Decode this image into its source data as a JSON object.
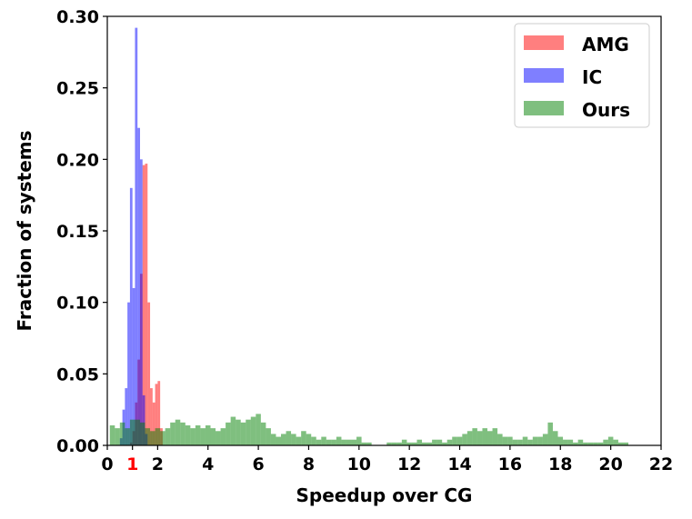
{
  "chart_data": {
    "type": "histogram",
    "xlabel": "Speedup over CG",
    "ylabel": "Fraction of systems",
    "xlim": [
      0,
      22
    ],
    "ylim": [
      0,
      0.3
    ],
    "xticks": [
      0,
      1,
      2,
      4,
      6,
      8,
      10,
      12,
      14,
      16,
      18,
      20,
      22
    ],
    "xtick_labels": [
      "0",
      "1",
      "2",
      "4",
      "6",
      "8",
      "10",
      "12",
      "14",
      "16",
      "18",
      "20",
      "22"
    ],
    "highlighted_xtick": {
      "label": "1",
      "color": "#ff0000"
    },
    "yticks": [
      0.0,
      0.05,
      0.1,
      0.15,
      0.2,
      0.25,
      0.3
    ],
    "ytick_labels": [
      "0.00",
      "0.05",
      "0.10",
      "0.15",
      "0.20",
      "0.25",
      "0.30"
    ],
    "grid": false,
    "legend_position": "top-right",
    "series": [
      {
        "name": "AMG",
        "color": "#ff0000",
        "opacity": 0.5,
        "bin_edges": [
          0.9,
          1.0,
          1.1,
          1.2,
          1.3,
          1.4,
          1.5,
          1.6,
          1.7,
          1.8,
          1.9,
          2.0,
          2.1,
          2.2
        ],
        "values": [
          0.002,
          0.01,
          0.03,
          0.06,
          0.12,
          0.196,
          0.197,
          0.1,
          0.04,
          0.03,
          0.043,
          0.045,
          0.012
        ]
      },
      {
        "name": "IC",
        "color": "#0000ff",
        "opacity": 0.5,
        "bin_edges": [
          0.5,
          0.6,
          0.7,
          0.8,
          0.9,
          1.0,
          1.1,
          1.2,
          1.3,
          1.4,
          1.5,
          1.6
        ],
        "values": [
          0.005,
          0.025,
          0.04,
          0.1,
          0.18,
          0.11,
          0.292,
          0.222,
          0.2,
          0.035,
          0.008
        ]
      },
      {
        "name": "Ours",
        "color": "#008000",
        "opacity": 0.5,
        "bin_edges": [
          0.1,
          0.3,
          0.5,
          0.7,
          0.9,
          1.1,
          1.3,
          1.5,
          1.7,
          1.9,
          2.1,
          2.3,
          2.5,
          2.7,
          2.9,
          3.1,
          3.3,
          3.5,
          3.7,
          3.9,
          4.1,
          4.3,
          4.5,
          4.7,
          4.9,
          5.1,
          5.3,
          5.5,
          5.7,
          5.9,
          6.1,
          6.3,
          6.5,
          6.7,
          6.9,
          7.1,
          7.3,
          7.5,
          7.7,
          7.9,
          8.1,
          8.3,
          8.5,
          8.7,
          8.9,
          9.1,
          9.3,
          9.5,
          9.7,
          9.9,
          10.1,
          10.3,
          10.5,
          10.7,
          10.9,
          11.1,
          11.3,
          11.5,
          11.7,
          11.9,
          12.1,
          12.3,
          12.5,
          12.7,
          12.9,
          13.1,
          13.3,
          13.5,
          13.7,
          13.9,
          14.1,
          14.3,
          14.5,
          14.7,
          14.9,
          15.1,
          15.3,
          15.5,
          15.7,
          15.9,
          16.1,
          16.3,
          16.5,
          16.7,
          16.9,
          17.1,
          17.3,
          17.5,
          17.7,
          17.9,
          18.1,
          18.3,
          18.5,
          18.7,
          18.9,
          19.1,
          19.3,
          19.5,
          19.7,
          19.9,
          20.1,
          20.3,
          20.5,
          20.7
        ],
        "values": [
          0.014,
          0.012,
          0.016,
          0.012,
          0.018,
          0.018,
          0.016,
          0.012,
          0.01,
          0.012,
          0.01,
          0.012,
          0.016,
          0.018,
          0.016,
          0.014,
          0.012,
          0.014,
          0.012,
          0.014,
          0.012,
          0.01,
          0.012,
          0.016,
          0.02,
          0.018,
          0.016,
          0.018,
          0.02,
          0.022,
          0.016,
          0.012,
          0.008,
          0.006,
          0.008,
          0.01,
          0.008,
          0.006,
          0.01,
          0.008,
          0.006,
          0.004,
          0.006,
          0.004,
          0.004,
          0.006,
          0.004,
          0.004,
          0.004,
          0.006,
          0.002,
          0.002,
          0.0,
          0.0,
          0.0,
          0.002,
          0.002,
          0.002,
          0.004,
          0.002,
          0.002,
          0.004,
          0.002,
          0.002,
          0.004,
          0.004,
          0.002,
          0.004,
          0.006,
          0.006,
          0.008,
          0.01,
          0.012,
          0.01,
          0.012,
          0.01,
          0.012,
          0.008,
          0.006,
          0.006,
          0.004,
          0.004,
          0.006,
          0.004,
          0.006,
          0.006,
          0.008,
          0.016,
          0.01,
          0.006,
          0.004,
          0.004,
          0.002,
          0.004,
          0.002,
          0.002,
          0.002,
          0.002,
          0.004,
          0.006,
          0.004,
          0.002,
          0.002
        ]
      }
    ]
  }
}
